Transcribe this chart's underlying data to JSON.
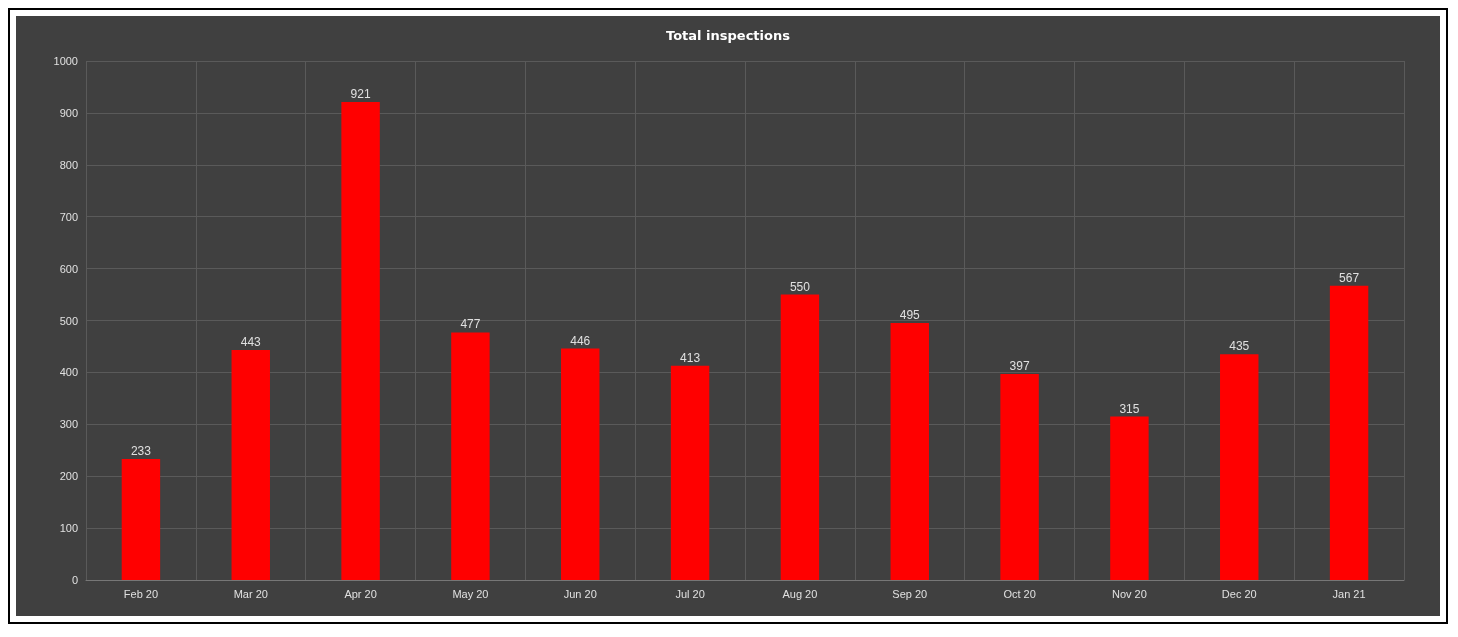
{
  "chart_data": {
    "type": "bar",
    "title": "Total inspections",
    "categories": [
      "Feb 20",
      "Mar 20",
      "Apr 20",
      "May 20",
      "Jun 20",
      "Jul 20",
      "Aug 20",
      "Sep 20",
      "Oct 20",
      "Nov 20",
      "Dec 20",
      "Jan 21"
    ],
    "values": [
      233,
      443,
      921,
      477,
      446,
      413,
      550,
      495,
      397,
      315,
      435,
      567
    ],
    "color": "#ff0000",
    "ylim": [
      0,
      1000
    ],
    "yticks": [
      0,
      100,
      200,
      300,
      400,
      500,
      600,
      700,
      800,
      900,
      1000
    ],
    "grid": true,
    "data_labels": true
  }
}
